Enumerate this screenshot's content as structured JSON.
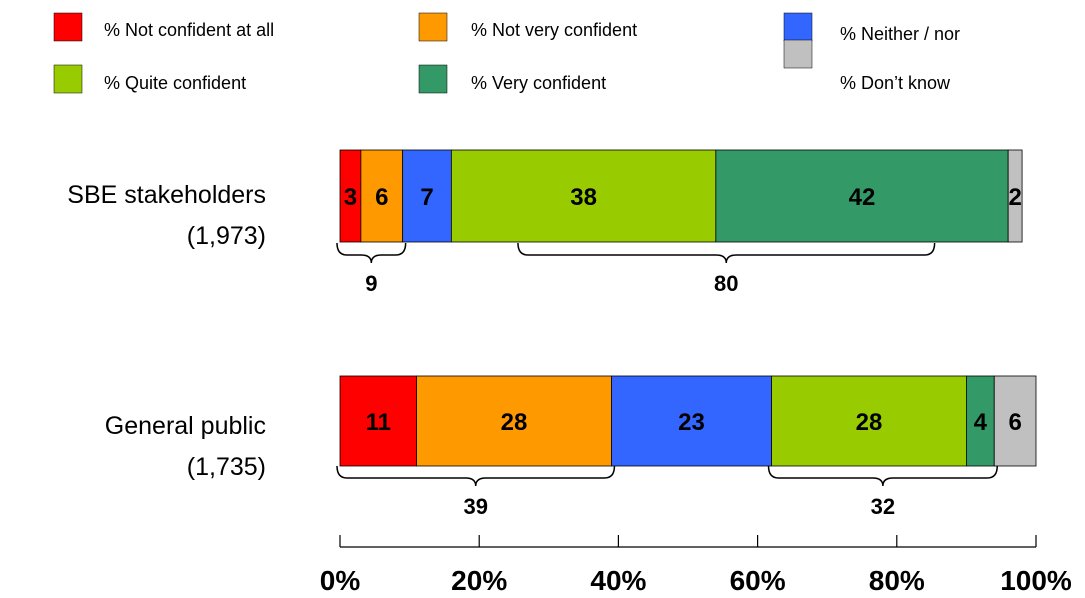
{
  "chart_data": {
    "type": "bar",
    "orientation": "horizontal",
    "stacked": true,
    "legend": [
      {
        "key": "not_confident",
        "label": "% Not confident at all",
        "color": "#ff0000"
      },
      {
        "key": "not_very",
        "label": "% Not very confident",
        "color": "#ff9900"
      },
      {
        "key": "neither",
        "label": "% Neither / nor",
        "color": "#3366ff"
      },
      {
        "key": "quite",
        "label": "% Quite confident",
        "color": "#99cc00"
      },
      {
        "key": "very",
        "label": "% Very confident",
        "color": "#339966"
      },
      {
        "key": "dont_know",
        "label": "% Don’t know",
        "color": "#c0c0c0"
      }
    ],
    "rows": [
      {
        "label_line1": "SBE stakeholders",
        "label_line2": "(1,973)",
        "values": [
          3,
          6,
          7,
          38,
          42,
          2
        ],
        "braces": [
          {
            "value": "9",
            "from": 0,
            "to": 9
          },
          {
            "value": "80",
            "from": 26,
            "to": 85
          }
        ]
      },
      {
        "label_line1": "General public",
        "label_line2": "(1,735)",
        "values": [
          11,
          28,
          23,
          28,
          4,
          6
        ],
        "braces": [
          {
            "value": "39",
            "from": 0,
            "to": 39
          },
          {
            "value": "32",
            "from": 62,
            "to": 94
          }
        ]
      }
    ],
    "xlim": [
      0,
      100
    ],
    "xticks": [
      "0%",
      "20%",
      "40%",
      "60%",
      "80%",
      "100%"
    ],
    "grid": false
  }
}
